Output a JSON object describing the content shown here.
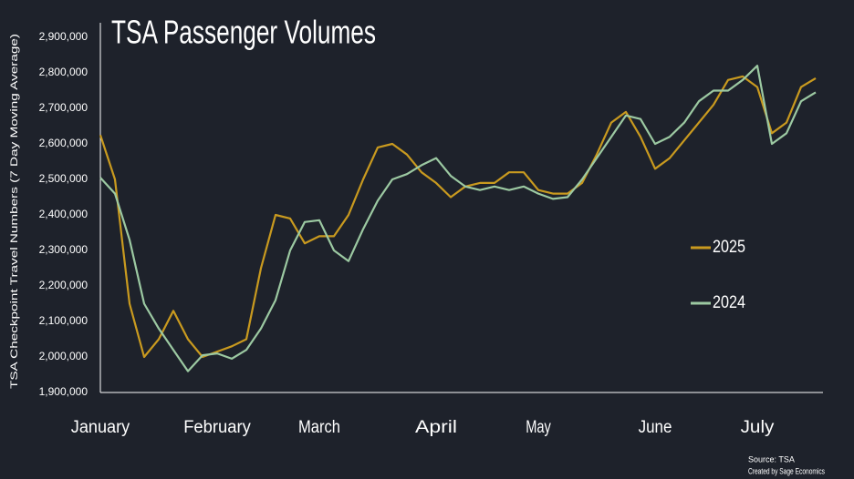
{
  "chart_data": {
    "type": "line",
    "title": "TSA Passenger Volumes",
    "y_label": "TSA Checkpoint Travel Numbers (7 Day Moving Average)",
    "source": "Source: TSA",
    "credit": "Created by Sage Economics",
    "categories": [
      "January",
      null,
      null,
      null,
      null,
      null,
      null,
      null,
      "February",
      null,
      null,
      null,
      null,
      null,
      null,
      "March",
      null,
      null,
      null,
      null,
      null,
      null,
      null,
      "April",
      null,
      null,
      null,
      null,
      null,
      null,
      "May",
      null,
      null,
      null,
      null,
      null,
      null,
      null,
      "June",
      null,
      null,
      null,
      null,
      null,
      null,
      "July",
      null,
      null,
      null,
      null
    ],
    "series": [
      {
        "name": "2025",
        "color": "#c99a1f",
        "values": [
          2625000,
          2500000,
          2150000,
          2000000,
          2050000,
          2130000,
          2050000,
          2000000,
          2015000,
          2030000,
          2050000,
          2250000,
          2400000,
          2390000,
          2320000,
          2340000,
          2340000,
          2400000,
          2500000,
          2590000,
          2600000,
          2570000,
          2520000,
          2490000,
          2450000,
          2480000,
          2490000,
          2490000,
          2520000,
          2520000,
          2470000,
          2460000,
          2460000,
          2490000,
          2570000,
          2660000,
          2690000,
          2620000,
          2530000,
          2560000,
          2610000,
          2660000,
          2710000,
          2780000,
          2790000,
          2760000,
          2630000,
          2660000,
          2760000,
          2785000
        ]
      },
      {
        "name": "2024",
        "color": "#9cc9a2",
        "values": [
          2505000,
          2460000,
          2330000,
          2150000,
          2080000,
          2020000,
          1960000,
          2005000,
          2010000,
          1995000,
          2020000,
          2080000,
          2160000,
          2300000,
          2380000,
          2385000,
          2300000,
          2270000,
          2360000,
          2440000,
          2500000,
          2515000,
          2540000,
          2560000,
          2510000,
          2480000,
          2470000,
          2480000,
          2470000,
          2480000,
          2460000,
          2445000,
          2450000,
          2500000,
          2560000,
          2620000,
          2680000,
          2670000,
          2600000,
          2620000,
          2660000,
          2720000,
          2750000,
          2750000,
          2780000,
          2820000,
          2600000,
          2630000,
          2720000,
          2745000
        ]
      }
    ],
    "ylim": [
      1900000,
      2900000
    ],
    "yticks": [
      {
        "value": 1900000,
        "label": "1,900,000"
      },
      {
        "value": 2000000,
        "label": "2,000,000"
      },
      {
        "value": 2100000,
        "label": "2,100,000"
      },
      {
        "value": 2200000,
        "label": "2,200,000"
      },
      {
        "value": 2300000,
        "label": "2,300,000"
      },
      {
        "value": 2400000,
        "label": "2,400,000"
      },
      {
        "value": 2500000,
        "label": "2,500,000"
      },
      {
        "value": 2600000,
        "label": "2,600,000"
      },
      {
        "value": 2700000,
        "label": "2,700,000"
      },
      {
        "value": 2800000,
        "label": "2,800,000"
      },
      {
        "value": 2900000,
        "label": "2,900,000"
      }
    ],
    "grid": false,
    "legend": "right"
  }
}
